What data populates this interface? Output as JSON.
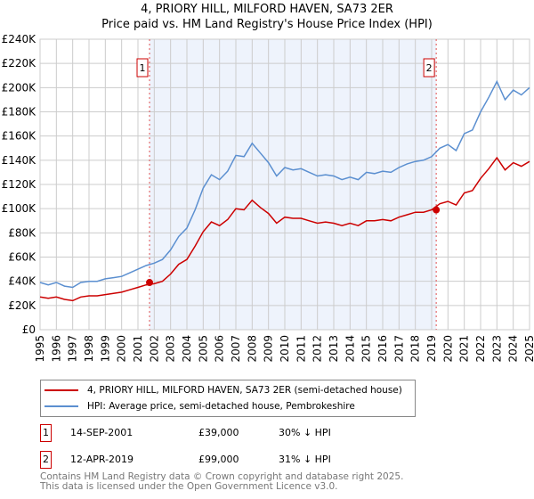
{
  "chart_data": {
    "type": "line",
    "title": "4, PRIORY HILL, MILFORD HAVEN, SA73 2ER",
    "subtitle": "Price paid vs. HM Land Registry's House Price Index (HPI)",
    "xlim": [
      1995,
      2025
    ],
    "ylim": [
      0,
      240000
    ],
    "y_ticks": [
      0,
      20000,
      40000,
      60000,
      80000,
      100000,
      120000,
      140000,
      160000,
      180000,
      200000,
      220000,
      240000
    ],
    "y_tick_labels": [
      "£0",
      "£20K",
      "£40K",
      "£60K",
      "£80K",
      "£100K",
      "£120K",
      "£140K",
      "£160K",
      "£180K",
      "£200K",
      "£220K",
      "£240K"
    ],
    "x_ticks": [
      1995,
      1996,
      1997,
      1998,
      1999,
      2000,
      2001,
      2002,
      2003,
      2004,
      2005,
      2006,
      2007,
      2008,
      2009,
      2010,
      2011,
      2012,
      2013,
      2014,
      2015,
      2016,
      2017,
      2018,
      2019,
      2020,
      2021,
      2022,
      2023,
      2024,
      2025
    ],
    "x_tick_labels": [
      "1995",
      "1996",
      "1997",
      "1998",
      "1999",
      "2000",
      "2001",
      "2002",
      "2003",
      "2004",
      "2005",
      "2006",
      "2007",
      "2008",
      "2009",
      "2010",
      "2011",
      "2012",
      "2013",
      "2014",
      "2015",
      "2016",
      "2017",
      "2018",
      "2019",
      "2020",
      "2021",
      "2022",
      "2023",
      "2024",
      "2025"
    ],
    "grid": true,
    "x": [
      1995,
      1995.5,
      1996,
      1996.5,
      1997,
      1997.5,
      1998,
      1998.5,
      1999,
      1999.5,
      2000,
      2000.5,
      2001,
      2001.5,
      2002,
      2002.5,
      2003,
      2003.5,
      2004,
      2004.5,
      2005,
      2005.5,
      2006,
      2006.5,
      2007,
      2007.5,
      2008,
      2008.5,
      2009,
      2009.5,
      2010,
      2010.5,
      2011,
      2011.5,
      2012,
      2012.5,
      2013,
      2013.5,
      2014,
      2014.5,
      2015,
      2015.5,
      2016,
      2016.5,
      2017,
      2017.5,
      2018,
      2018.5,
      2019,
      2019.5,
      2020,
      2020.5,
      2021,
      2021.5,
      2022,
      2022.5,
      2023,
      2023.5,
      2024,
      2024.5,
      2025
    ],
    "series": [
      {
        "name": "4, PRIORY HILL, MILFORD HAVEN, SA73 2ER (semi-detached house)",
        "color": "#cc0000",
        "values": [
          27000,
          26000,
          27000,
          25000,
          24000,
          27000,
          28000,
          28000,
          29000,
          30000,
          31000,
          33000,
          35000,
          37000,
          38000,
          40000,
          46000,
          54000,
          58000,
          69000,
          81000,
          89000,
          86000,
          91000,
          100000,
          99000,
          107000,
          101000,
          96000,
          88000,
          93000,
          92000,
          92000,
          90000,
          88000,
          89000,
          88000,
          86000,
          88000,
          86000,
          90000,
          90000,
          91000,
          90000,
          93000,
          95000,
          97000,
          97000,
          99000,
          104000,
          106000,
          103000,
          113000,
          115000,
          125000,
          133000,
          142000,
          132000,
          138000,
          135000,
          139000
        ]
      },
      {
        "name": "HPI: Average price, semi-detached house, Pembrokeshire",
        "color": "#5b8fd0",
        "values": [
          39000,
          37000,
          39000,
          36000,
          35000,
          39000,
          40000,
          40000,
          42000,
          43000,
          44000,
          47000,
          50000,
          53000,
          55000,
          58000,
          66000,
          77000,
          84000,
          99000,
          117000,
          128000,
          124000,
          131000,
          144000,
          143000,
          154000,
          146000,
          138000,
          127000,
          134000,
          132000,
          133000,
          130000,
          127000,
          128000,
          127000,
          124000,
          126000,
          124000,
          130000,
          129000,
          131000,
          130000,
          134000,
          137000,
          139000,
          140000,
          143000,
          150000,
          153000,
          148000,
          162000,
          165000,
          180000,
          192000,
          205000,
          190000,
          198000,
          194000,
          200000
        ]
      }
    ],
    "sales": [
      {
        "id": "1",
        "date": "14-SEP-2001",
        "x": 2001.71,
        "price": 39000,
        "price_label": "£39,000",
        "delta": "30% ↓ HPI"
      },
      {
        "id": "2",
        "date": "12-APR-2019",
        "x": 2019.28,
        "price": 99000,
        "price_label": "£99,000",
        "delta": "31% ↓ HPI"
      }
    ],
    "legend_position": "below"
  },
  "footer": {
    "line1": "Contains HM Land Registry data © Crown copyright and database right 2025.",
    "line2": "This data is licensed under the Open Government Licence v3.0."
  }
}
